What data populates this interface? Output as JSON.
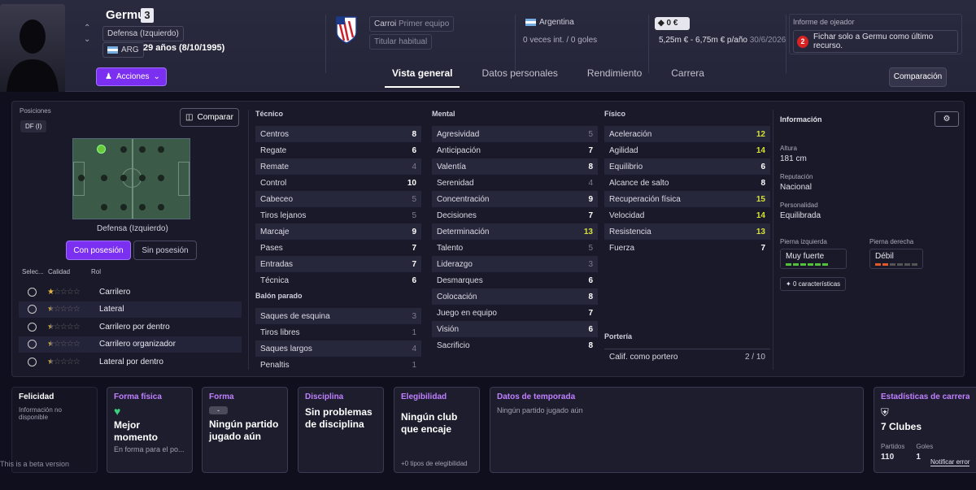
{
  "player": {
    "name": "Germu",
    "number": "3",
    "position": "Defensa (Izquierdo)",
    "nationality_code": "ARG",
    "age": "29 años (8/10/1995)"
  },
  "actions_label": "Acciones",
  "club": {
    "name": "Carroi",
    "squad": "Primer equipo",
    "status": "Titular habitual"
  },
  "nation": {
    "name": "Argentina",
    "caps": "0 veces int. / 0 goles"
  },
  "value": {
    "amount": "0 €",
    "wage": "5,25m € - 6,75m € p/año",
    "contract": "30/6/2026"
  },
  "scout": {
    "title": "Informe de ojeador",
    "num": "2",
    "text": "Fichar solo a Germu como último recurso."
  },
  "tabs": [
    "Vista general",
    "Datos personales",
    "Rendimiento",
    "Carrera"
  ],
  "compare_label": "Comparación",
  "positions": {
    "title": "Posiciones",
    "current": "DF (I)",
    "compare": "Comparar",
    "caption": "Defensa (Izquierdo)",
    "with_ball": "Con posesión",
    "without_ball": "Sin posesión"
  },
  "roles_header": {
    "sel": "Selec...",
    "quality": "Calidad",
    "role": "Rol"
  },
  "roles": [
    {
      "name": "Carrilero",
      "stars": 1
    },
    {
      "name": "Lateral",
      "stars": 0.5
    },
    {
      "name": "Carrilero por dentro",
      "stars": 0.5
    },
    {
      "name": "Carrilero organizador",
      "stars": 0.5
    },
    {
      "name": "Lateral por dentro",
      "stars": 0.5
    }
  ],
  "technical": {
    "title": "Técnico",
    "attrs": [
      [
        "Centros",
        "8"
      ],
      [
        "Regate",
        "6"
      ],
      [
        "Remate",
        "4"
      ],
      [
        "Control",
        "10"
      ],
      [
        "Cabeceo",
        "5"
      ],
      [
        "Tiros lejanos",
        "5"
      ],
      [
        "Marcaje",
        "9"
      ],
      [
        "Pases",
        "7"
      ],
      [
        "Entradas",
        "7"
      ],
      [
        "Técnica",
        "6"
      ]
    ]
  },
  "setpieces": {
    "title": "Balón parado",
    "attrs": [
      [
        "Saques de esquina",
        "3"
      ],
      [
        "Tiros libres",
        "1"
      ],
      [
        "Saques largos",
        "4"
      ],
      [
        "Penaltis",
        "1"
      ]
    ]
  },
  "mental": {
    "title": "Mental",
    "attrs": [
      [
        "Agresividad",
        "5"
      ],
      [
        "Anticipación",
        "7"
      ],
      [
        "Valentía",
        "8"
      ],
      [
        "Serenidad",
        "4"
      ],
      [
        "Concentración",
        "9"
      ],
      [
        "Decisiones",
        "7"
      ],
      [
        "Determinación",
        "13"
      ],
      [
        "Talento",
        "5"
      ],
      [
        "Liderazgo",
        "3"
      ],
      [
        "Desmarques",
        "6"
      ],
      [
        "Colocación",
        "8"
      ],
      [
        "Juego en equipo",
        "7"
      ],
      [
        "Visión",
        "6"
      ],
      [
        "Sacrificio",
        "8"
      ]
    ]
  },
  "physical": {
    "title": "Físico",
    "attrs": [
      [
        "Aceleración",
        "12"
      ],
      [
        "Agilidad",
        "14"
      ],
      [
        "Equilibrio",
        "6"
      ],
      [
        "Alcance de salto",
        "8"
      ],
      [
        "Recuperación física",
        "15"
      ],
      [
        "Velocidad",
        "14"
      ],
      [
        "Resistencia",
        "13"
      ],
      [
        "Fuerza",
        "7"
      ]
    ]
  },
  "goalkeeping": {
    "title": "Portería",
    "label": "Calif. como portero",
    "value": "2 / 10"
  },
  "info": {
    "title": "Información",
    "height_k": "Altura",
    "height_v": "181 cm",
    "rep_k": "Reputación",
    "rep_v": "Nacional",
    "pers_k": "Personalidad",
    "pers_v": "Equilibrada",
    "lf_k": "Pierna izquierda",
    "lf_v": "Muy fuerte",
    "rf_k": "Pierna derecha",
    "rf_v": "Débil",
    "traits": "0 características"
  },
  "footer": {
    "happy_h": "Felicidad",
    "happy_t": "Información no disponible",
    "beta": "This is a beta version",
    "fit_h": "Forma física",
    "fit_b": "Mejor momento",
    "fit_s": "En forma para el po...",
    "form_h": "Forma",
    "form_badge": "-",
    "form_b": "Ningún partido jugado aún",
    "disc_h": "Disciplina",
    "disc_b": "Sin problemas de disciplina",
    "elig_h": "Elegibilidad",
    "elig_b": "Ningún club que encaje",
    "elig_s": "+0 tipos de elegibilidad",
    "season_h": "Datos de temporada",
    "season_t": "Ningún partido jugado aún",
    "career_h": "Estadísticas de carrera",
    "career_b": "7 Clubes",
    "career_p_k": "Partidos",
    "career_g_k": "Goles",
    "career_p": "110",
    "career_g": "1",
    "report": "Notificar error"
  }
}
